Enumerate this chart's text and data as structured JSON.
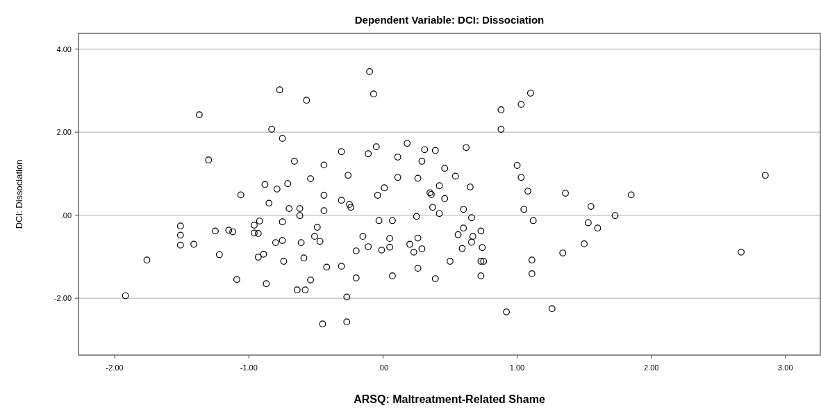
{
  "chart_data": {
    "type": "scatter",
    "title": "Dependent Variable: DCI: Dissociation",
    "xlabel": "ARSQ: Maltreatment-Related Shame",
    "ylabel": "DCI: Dissociation",
    "xlim": [
      -2.27,
      3.26
    ],
    "ylim": [
      -3.37,
      4.38
    ],
    "xticks": [
      {
        "value": -2,
        "label": "-2.00"
      },
      {
        "value": -1,
        "label": "-1.00"
      },
      {
        "value": 0,
        "label": ".00"
      },
      {
        "value": 1,
        "label": "1.00"
      },
      {
        "value": 2,
        "label": "2.00"
      },
      {
        "value": 3,
        "label": "3.00"
      }
    ],
    "yticks": [
      {
        "value": -2,
        "label": "-2.00"
      },
      {
        "value": 0,
        "label": ".00"
      },
      {
        "value": 2,
        "label": "2.00"
      },
      {
        "value": 4,
        "label": "4.00"
      }
    ],
    "grid": "y",
    "marker": "circle",
    "series": [
      {
        "color": "#000000",
        "x": [
          -0.77,
          -0.57,
          -1.37,
          -0.83,
          -0.75,
          -1.3,
          -0.66,
          -0.44,
          -0.88,
          -0.79,
          -0.71,
          -0.54,
          -1.06,
          -0.44,
          -0.1,
          -0.07,
          0.88,
          1.03,
          1.1,
          0.88,
          0.18,
          -0.05,
          -0.31,
          -0.11,
          0.31,
          0.39,
          0.62,
          0.11,
          0.29,
          0.46,
          1.0,
          1.03,
          -0.26,
          0.11,
          0.26,
          0.54,
          0.01,
          0.42,
          0.65,
          1.08,
          1.36,
          -0.04,
          0.35,
          0.36,
          -0.31,
          0.46,
          2.85,
          1.85,
          -0.85,
          -0.7,
          -0.62,
          -0.62,
          -0.44,
          -1.51,
          -1.51,
          -1.51,
          -1.41,
          -1.76,
          -1.92,
          -1.25,
          -1.15,
          -1.12,
          -1.22,
          -0.96,
          -0.92,
          -0.96,
          -0.93,
          -0.8,
          -0.75,
          -0.75,
          -0.93,
          -0.89,
          -0.74,
          -0.61,
          -0.59,
          -0.49,
          -0.51,
          -0.47,
          -0.42,
          -1.09,
          -0.87,
          -0.54,
          -0.64,
          -0.58,
          -0.45,
          -0.25,
          -0.24,
          -0.03,
          0.07,
          0.25,
          0.37,
          0.42,
          0.6,
          0.66,
          1.05,
          1.12,
          -0.15,
          -0.11,
          -0.2,
          -0.01,
          0.05,
          0.05,
          0.2,
          0.26,
          0.23,
          0.29,
          0.6,
          0.56,
          0.67,
          0.66,
          0.73,
          0.59,
          0.74,
          0.5,
          0.73,
          0.75,
          1.11,
          0.73,
          1.11,
          -0.31,
          -0.2,
          0.07,
          0.26,
          0.39,
          -0.27,
          -0.27,
          0.92,
          1.26,
          1.34,
          1.55,
          1.73,
          1.53,
          1.6,
          1.5,
          2.67
        ],
        "values": [
          3.02,
          2.77,
          2.42,
          2.07,
          1.85,
          1.33,
          1.3,
          1.21,
          0.74,
          0.63,
          0.76,
          0.88,
          0.49,
          0.48,
          3.46,
          2.92,
          2.54,
          2.67,
          2.94,
          2.07,
          1.73,
          1.65,
          1.53,
          1.48,
          1.58,
          1.56,
          1.63,
          1.4,
          1.3,
          1.13,
          1.2,
          0.91,
          0.96,
          0.91,
          0.89,
          0.94,
          0.66,
          0.71,
          0.68,
          0.58,
          0.53,
          0.48,
          0.54,
          0.5,
          0.36,
          0.4,
          0.96,
          0.49,
          0.29,
          0.16,
          0.16,
          -0.01,
          0.11,
          -0.26,
          -0.48,
          -0.72,
          -0.7,
          -1.08,
          -1.94,
          -0.38,
          -0.36,
          -0.4,
          -0.95,
          -0.24,
          -0.14,
          -0.43,
          -0.44,
          -0.66,
          -0.61,
          -0.16,
          -1.01,
          -0.94,
          -1.11,
          -0.66,
          -1.03,
          -0.29,
          -0.51,
          -0.63,
          -1.25,
          -1.55,
          -1.65,
          -1.56,
          -1.8,
          -1.8,
          -2.62,
          0.26,
          0.19,
          -0.13,
          -0.13,
          -0.03,
          0.19,
          0.04,
          0.14,
          -0.06,
          0.14,
          -0.13,
          -0.51,
          -0.76,
          -0.86,
          -0.84,
          -0.56,
          -0.77,
          -0.7,
          -0.55,
          -0.89,
          -0.81,
          -0.31,
          -0.47,
          -0.51,
          -0.65,
          -0.38,
          -0.8,
          -0.78,
          -1.11,
          -1.11,
          -1.11,
          -1.08,
          -1.46,
          -1.41,
          -1.23,
          -1.51,
          -1.46,
          -1.28,
          -1.53,
          -1.97,
          -2.57,
          -2.33,
          -2.25,
          -0.91,
          0.21,
          -0.01,
          -0.18,
          -0.31,
          -0.69,
          -0.89
        ]
      }
    ]
  }
}
